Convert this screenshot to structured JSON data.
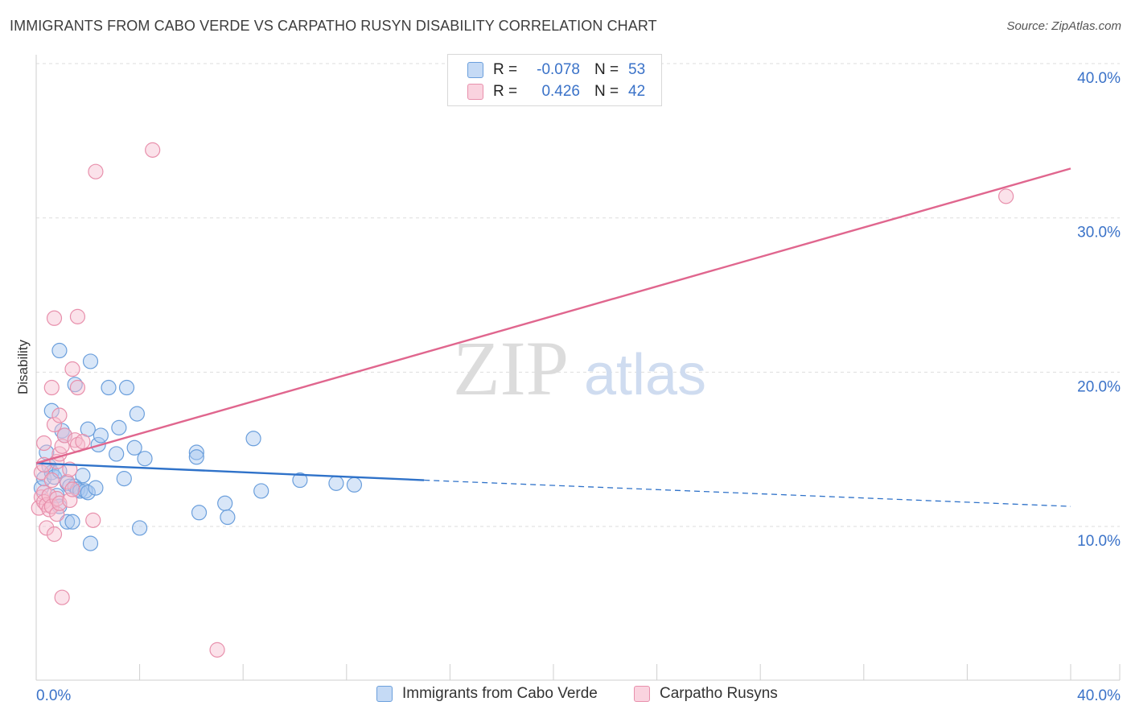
{
  "header": {
    "title": "IMMIGRANTS FROM CABO VERDE VS CARPATHO RUSYN DISABILITY CORRELATION CHART",
    "source": "Source: ZipAtlas.com"
  },
  "watermark": {
    "zip": "ZIP",
    "atlas": "atlas"
  },
  "stats_legend": [
    {
      "r_label": "R =",
      "r_value": "-0.078",
      "n_label": "N =",
      "n_value": "53",
      "color": "#a9c8ef",
      "border": "#6b9fdc"
    },
    {
      "r_label": "R =",
      "r_value": "0.426",
      "n_label": "N =",
      "n_value": "42",
      "color": "#f7bfd0",
      "border": "#e890ac"
    }
  ],
  "bottom_legend": [
    {
      "label": "Immigrants from Cabo Verde",
      "color": "#a9c8ef",
      "border": "#6b9fdc"
    },
    {
      "label": "Carpatho Rusyns",
      "color": "#f7bfd0",
      "border": "#e890ac"
    }
  ],
  "chart_data": {
    "type": "scatter",
    "title": "IMMIGRANTS FROM CABO VERDE VS CARPATHO RUSYN DISABILITY CORRELATION CHART",
    "xlabel": "",
    "ylabel": "Disability",
    "xlim": [
      0,
      40
    ],
    "ylim": [
      0,
      41
    ],
    "x_tick_labels": [
      "0.0%",
      "40.0%"
    ],
    "y_ticks": [
      10,
      20,
      30,
      40
    ],
    "y_tick_labels": [
      "10.0%",
      "20.0%",
      "30.0%",
      "40.0%"
    ],
    "grid": true,
    "legend_position": "top-center",
    "series": [
      {
        "name": "Immigrants from Cabo Verde",
        "color": "#6b9fdc",
        "fill": "#a9c8ef",
        "r": -0.078,
        "n": 53,
        "trend": {
          "x0": 0,
          "y0": 14.1,
          "x1": 15,
          "y1": 13.0,
          "dashed_to_x": 40,
          "dashed_to_y": 11.3,
          "color": "#2f72c9"
        },
        "points": [
          [
            0.2,
            12.5
          ],
          [
            0.3,
            13.1
          ],
          [
            0.4,
            14.8
          ],
          [
            0.5,
            13.9
          ],
          [
            0.6,
            13.5
          ],
          [
            0.6,
            17.5
          ],
          [
            0.7,
            13.2
          ],
          [
            0.8,
            12.0
          ],
          [
            0.9,
            13.6
          ],
          [
            0.9,
            11.3
          ],
          [
            0.9,
            21.4
          ],
          [
            1.0,
            16.2
          ],
          [
            1.1,
            15.9
          ],
          [
            1.2,
            12.8
          ],
          [
            1.2,
            10.3
          ],
          [
            1.3,
            12.6
          ],
          [
            1.4,
            10.3
          ],
          [
            1.5,
            12.6
          ],
          [
            1.5,
            19.2
          ],
          [
            1.6,
            12.4
          ],
          [
            1.7,
            12.3
          ],
          [
            1.8,
            13.3
          ],
          [
            1.9,
            12.3
          ],
          [
            2.0,
            12.2
          ],
          [
            2.0,
            16.3
          ],
          [
            2.1,
            20.7
          ],
          [
            2.1,
            8.9
          ],
          [
            2.3,
            12.5
          ],
          [
            2.4,
            15.3
          ],
          [
            2.5,
            15.9
          ],
          [
            2.8,
            19.0
          ],
          [
            3.1,
            14.7
          ],
          [
            3.2,
            16.4
          ],
          [
            3.4,
            13.1
          ],
          [
            3.5,
            19.0
          ],
          [
            3.8,
            15.1
          ],
          [
            3.9,
            17.3
          ],
          [
            4.0,
            9.9
          ],
          [
            4.2,
            14.4
          ],
          [
            6.2,
            14.8
          ],
          [
            6.2,
            14.5
          ],
          [
            6.3,
            10.9
          ],
          [
            7.3,
            11.5
          ],
          [
            7.4,
            10.6
          ],
          [
            8.4,
            15.7
          ],
          [
            8.7,
            12.3
          ],
          [
            10.2,
            13.0
          ],
          [
            11.6,
            12.8
          ],
          [
            12.3,
            12.7
          ]
        ]
      },
      {
        "name": "Carpatho Rusyns",
        "color": "#e890ac",
        "fill": "#f7bfd0",
        "r": 0.426,
        "n": 42,
        "trend": {
          "x0": 0,
          "y0": 14.1,
          "x1": 40,
          "y1": 33.2,
          "color": "#e0668e"
        },
        "points": [
          [
            0.1,
            11.2
          ],
          [
            0.2,
            11.9
          ],
          [
            0.2,
            13.5
          ],
          [
            0.3,
            12.2
          ],
          [
            0.3,
            14.0
          ],
          [
            0.3,
            11.6
          ],
          [
            0.3,
            15.4
          ],
          [
            0.4,
            11.4
          ],
          [
            0.4,
            9.9
          ],
          [
            0.5,
            12.0
          ],
          [
            0.5,
            11.1
          ],
          [
            0.6,
            11.3
          ],
          [
            0.6,
            13.0
          ],
          [
            0.6,
            19.0
          ],
          [
            0.7,
            16.6
          ],
          [
            0.7,
            9.5
          ],
          [
            0.7,
            23.5
          ],
          [
            0.8,
            11.8
          ],
          [
            0.8,
            10.8
          ],
          [
            0.8,
            14.2
          ],
          [
            0.9,
            17.2
          ],
          [
            0.9,
            11.5
          ],
          [
            0.9,
            14.7
          ],
          [
            1.0,
            15.2
          ],
          [
            1.0,
            5.4
          ],
          [
            1.1,
            15.9
          ],
          [
            1.2,
            12.9
          ],
          [
            1.3,
            11.7
          ],
          [
            1.3,
            13.7
          ],
          [
            1.4,
            12.4
          ],
          [
            1.4,
            20.2
          ],
          [
            1.5,
            15.6
          ],
          [
            1.6,
            15.3
          ],
          [
            1.6,
            19.0
          ],
          [
            1.6,
            23.6
          ],
          [
            1.8,
            15.5
          ],
          [
            2.2,
            10.4
          ],
          [
            2.3,
            33.0
          ],
          [
            4.5,
            34.4
          ],
          [
            7.0,
            2.0
          ],
          [
            37.5,
            31.4
          ]
        ]
      }
    ]
  }
}
